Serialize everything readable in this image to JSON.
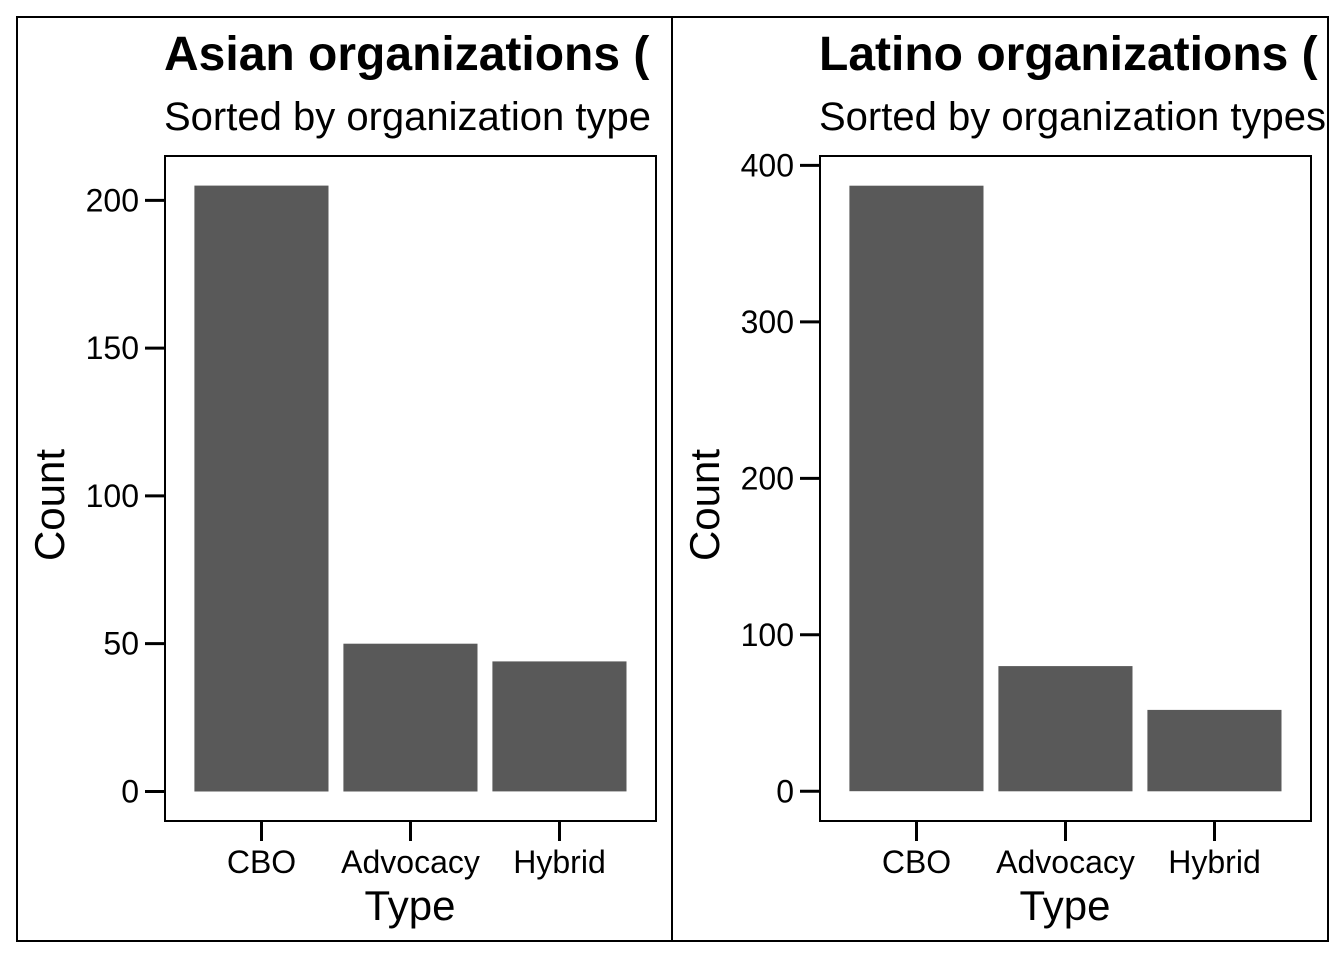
{
  "chart_data": [
    {
      "type": "bar",
      "title": "Asian organizations (",
      "subtitle": "Sorted by organization type",
      "xlabel": "Type",
      "ylabel": "Count",
      "categories": [
        "CBO",
        "Advocacy",
        "Hybrid"
      ],
      "values": [
        205,
        50,
        44
      ],
      "yticks": [
        0,
        50,
        100,
        150,
        200
      ],
      "ylim": [
        -10,
        215
      ],
      "bar_color": "#595959",
      "grid": false
    },
    {
      "type": "bar",
      "title": "Latino organizations (",
      "subtitle": "Sorted by organization types",
      "xlabel": "Type",
      "ylabel": "Count",
      "categories": [
        "CBO",
        "Advocacy",
        "Hybrid"
      ],
      "values": [
        387,
        80,
        52
      ],
      "yticks": [
        0,
        100,
        200,
        300,
        400
      ],
      "ylim": [
        -19,
        406
      ],
      "bar_color": "#595959",
      "grid": false
    }
  ]
}
